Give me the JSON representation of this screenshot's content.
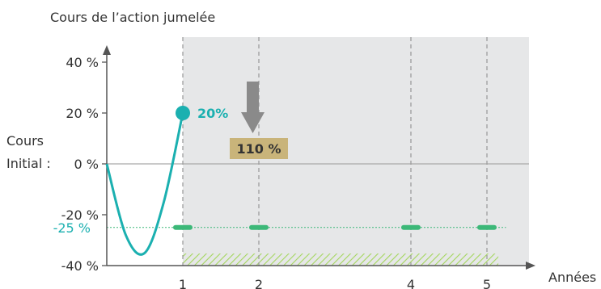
{
  "chart_data": {
    "type": "line",
    "title": "Cours de l’action jumelée",
    "xlabel": "Années",
    "y_axis_label_lines": [
      "Cours",
      "Initial :"
    ],
    "y_ticks": [
      {
        "value": 40,
        "label": "40 %"
      },
      {
        "value": 20,
        "label": "20 %"
      },
      {
        "value": 0,
        "label": "0 %"
      },
      {
        "value": -20,
        "label": "-20 %"
      },
      {
        "value": -40,
        "label": "-40 %"
      }
    ],
    "barrier": {
      "value": -25,
      "label": "-25 %",
      "color": "#1bb0b0"
    },
    "x_ticks": [
      {
        "value": 1,
        "label": "1"
      },
      {
        "value": 2,
        "label": "2"
      },
      {
        "value": 4,
        "label": "4"
      },
      {
        "value": 5,
        "label": "5"
      }
    ],
    "ylim": [
      -40,
      45
    ],
    "xlim": [
      0,
      5.5
    ],
    "series": [
      {
        "color": "#1bb0b0",
        "x": [
          0,
          0.25,
          0.5,
          0.75,
          1
        ],
        "y": [
          0,
          -28,
          -35,
          -15,
          20
        ]
      }
    ],
    "end_point": {
      "x": 1,
      "y": 20,
      "label": "20%"
    },
    "annotation": {
      "label": "110 %",
      "color": "#c9b47a"
    },
    "shaded_region": {
      "x_start": 1,
      "x_end": 5.5,
      "color": "#e6e7e8"
    },
    "colors": {
      "teal": "#1bb0b0",
      "green_marker": "#3cb878",
      "hatch": "#a4d65e",
      "arrow": "#8a8a8a",
      "dashed": "#9d9d9d",
      "axis": "#555555"
    }
  }
}
